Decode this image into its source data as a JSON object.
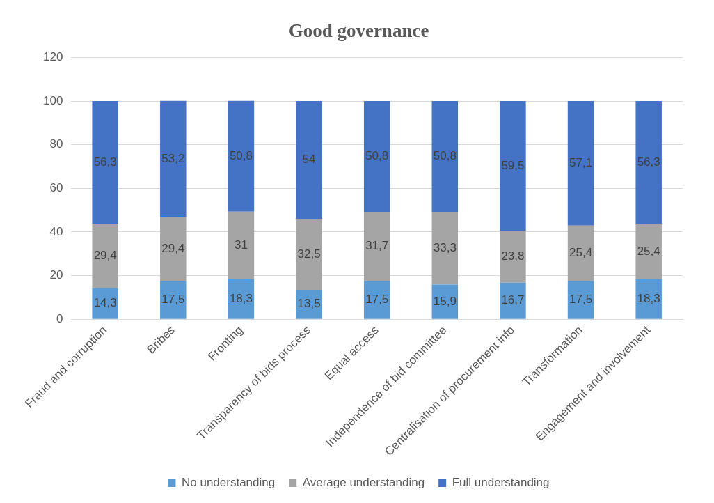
{
  "chart_data": {
    "type": "bar",
    "title": "Good governance",
    "stacked": true,
    "categories": [
      "Fraud and corruption",
      "Bribes",
      "Fronting",
      "Transparency of bids process",
      "Equal access",
      "Independence of bid committee",
      "Centralisation of procurement info",
      "Transformation",
      "Engagement and involvement"
    ],
    "series": [
      {
        "name": "No understanding",
        "color": "#5b9bd5",
        "values": [
          14.3,
          17.5,
          18.3,
          13.5,
          17.5,
          15.9,
          16.7,
          17.5,
          18.3
        ],
        "value_labels": [
          "14,3",
          "17,5",
          "18,3",
          "13,5",
          "17,5",
          "15,9",
          "16,7",
          "17,5",
          "18,3"
        ]
      },
      {
        "name": "Average understanding",
        "color": "#a5a5a5",
        "values": [
          29.4,
          29.4,
          31,
          32.5,
          31.7,
          33.3,
          23.8,
          25.4,
          25.4
        ],
        "value_labels": [
          "29,4",
          "29,4",
          "31",
          "32,5",
          "31,7",
          "33,3",
          "23,8",
          "25,4",
          "25,4"
        ]
      },
      {
        "name": "Full understanding",
        "color": "#4472c4",
        "values": [
          56.3,
          53.2,
          50.8,
          54,
          50.8,
          50.8,
          59.5,
          57.1,
          56.3
        ],
        "value_labels": [
          "56,3",
          "53,2",
          "50,8",
          "54",
          "50,8",
          "50,8",
          "59,5",
          "57,1",
          "56,3"
        ]
      }
    ],
    "ylim": [
      0,
      120
    ],
    "yticks": [
      0,
      20,
      40,
      60,
      80,
      100,
      120
    ],
    "grid": "y",
    "legend": "bottom"
  }
}
